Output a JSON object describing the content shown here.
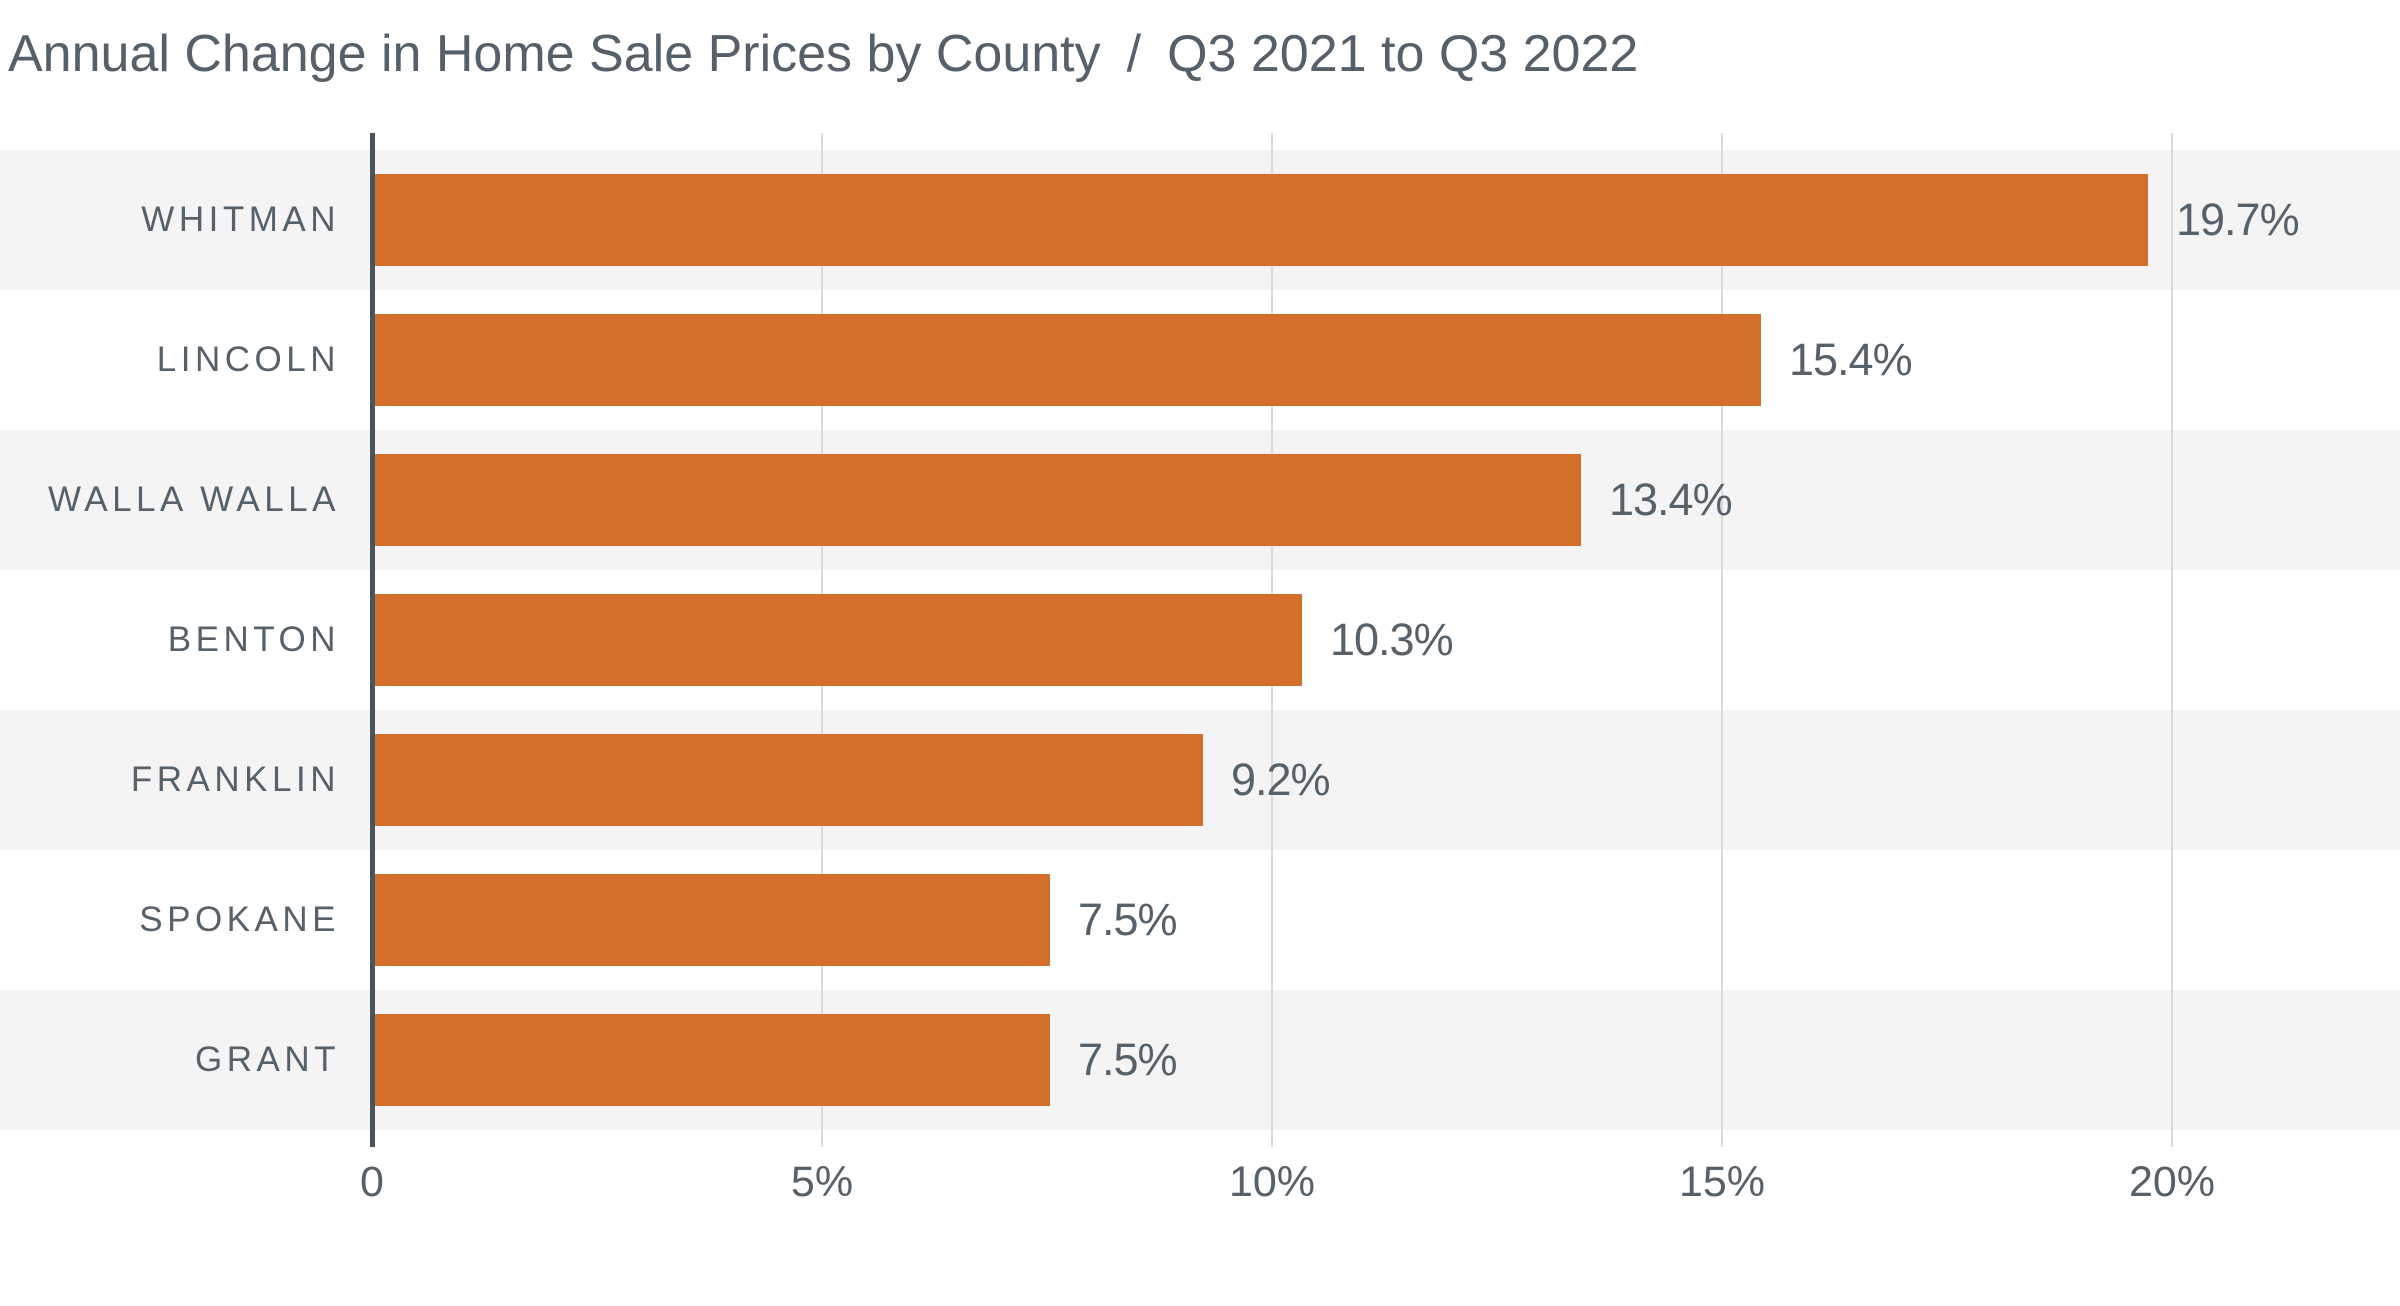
{
  "title": {
    "main": "Annual Change in Home Sale Prices by County",
    "separator": "/",
    "period": "Q3 2021 to Q3 2022"
  },
  "chart_data": {
    "type": "bar",
    "orientation": "horizontal",
    "title": "Annual Change in Home Sale Prices by County / Q3 2021 to Q3 2022",
    "categories": [
      "WHITMAN",
      "LINCOLN",
      "WALLA WALLA",
      "BENTON",
      "FRANKLIN",
      "SPOKANE",
      "GRANT"
    ],
    "values": [
      19.7,
      15.4,
      13.4,
      10.3,
      9.2,
      7.5,
      7.5
    ],
    "value_labels": [
      "19.7%",
      "15.4%",
      "13.4%",
      "10.3%",
      "9.2%",
      "7.5%",
      "7.5%"
    ],
    "xlabel": "",
    "ylabel": "",
    "xlim": [
      0,
      22.5
    ],
    "x_ticks": [
      {
        "value": 0,
        "label": "0"
      },
      {
        "value": 5,
        "label": "5%"
      },
      {
        "value": 10,
        "label": "10%"
      },
      {
        "value": 15,
        "label": "15%"
      },
      {
        "value": 20,
        "label": "20%"
      }
    ],
    "grid": "vertical-gridlines-on",
    "legend": "none",
    "colors": {
      "bar": "#d36e2b",
      "row_band_alt": "#f5f4f5",
      "row_band": "#ffffff",
      "gridline": "#d9dadc",
      "zero_axis": "#4a545c",
      "text": "#57616a",
      "title_text": "#55606a"
    }
  }
}
